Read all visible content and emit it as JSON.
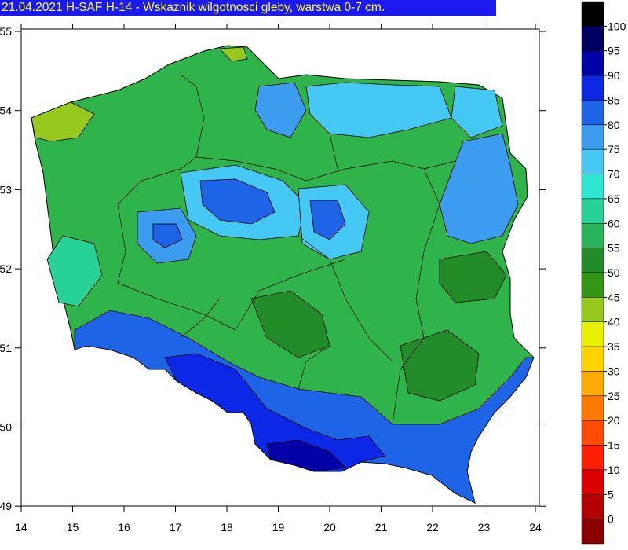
{
  "title": "21.04.2021 H-SAF H-14 - Wskaznik wilgotnosci gleby, warstwa 0-7 cm.",
  "map": {
    "x_ticks": [
      "14",
      "15",
      "16",
      "17",
      "18",
      "19",
      "20",
      "21",
      "22",
      "23",
      "24"
    ],
    "y_ticks": [
      "55",
      "54",
      "53",
      "52",
      "51",
      "50",
      "49"
    ]
  },
  "colorbar": {
    "levels": [
      "100",
      "95",
      "90",
      "85",
      "80",
      "75",
      "70",
      "65",
      "60",
      "55",
      "50",
      "45",
      "40",
      "35",
      "30",
      "25",
      "20",
      "15",
      "10",
      "5",
      "0"
    ],
    "colors": [
      "#000000",
      "#000060",
      "#0000a8",
      "#0a28e6",
      "#1e64e6",
      "#3c9cf0",
      "#46c8f5",
      "#2ee6d2",
      "#28d296",
      "#28b45a",
      "#228c28",
      "#329614",
      "#96c81e",
      "#e6f000",
      "#ffd200",
      "#ffaa00",
      "#ff7800",
      "#ff4b00",
      "#ff1e00",
      "#dc0000",
      "#b40000",
      "#8c0000"
    ]
  }
}
